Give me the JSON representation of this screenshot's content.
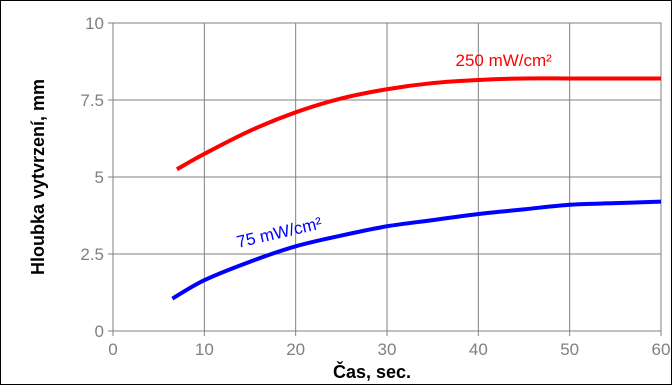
{
  "chart_data": {
    "type": "line",
    "title": "",
    "xlabel": "Čas, sec.",
    "ylabel": "Hloubka vytvrzení, mm",
    "xlim": [
      0,
      60
    ],
    "ylim": [
      0,
      10
    ],
    "x_ticks": [
      0,
      10,
      20,
      30,
      40,
      50,
      60
    ],
    "y_ticks": [
      0,
      2.5,
      5,
      7.5,
      10
    ],
    "x_tick_labels": [
      "0",
      "10",
      "20",
      "30",
      "40",
      "50",
      "60"
    ],
    "y_tick_labels": [
      "0",
      "2.5",
      "5",
      "7.5",
      "10"
    ],
    "grid": true,
    "legend": "none",
    "series": [
      {
        "name": "250 mW/cm²",
        "color": "#ff0000",
        "points": [
          [
            7,
            5.25
          ],
          [
            10,
            5.75
          ],
          [
            15,
            6.5
          ],
          [
            20,
            7.1
          ],
          [
            25,
            7.55
          ],
          [
            30,
            7.85
          ],
          [
            35,
            8.05
          ],
          [
            40,
            8.15
          ],
          [
            45,
            8.2
          ],
          [
            50,
            8.2
          ],
          [
            55,
            8.2
          ],
          [
            60,
            8.2
          ]
        ]
      },
      {
        "name": "75 mW/cm²",
        "color": "#0000ff",
        "points": [
          [
            6.5,
            1.05
          ],
          [
            10,
            1.65
          ],
          [
            15,
            2.25
          ],
          [
            20,
            2.75
          ],
          [
            25,
            3.1
          ],
          [
            30,
            3.4
          ],
          [
            35,
            3.6
          ],
          [
            40,
            3.8
          ],
          [
            45,
            3.95
          ],
          [
            50,
            4.1
          ],
          [
            55,
            4.15
          ],
          [
            60,
            4.2
          ]
        ]
      }
    ]
  }
}
